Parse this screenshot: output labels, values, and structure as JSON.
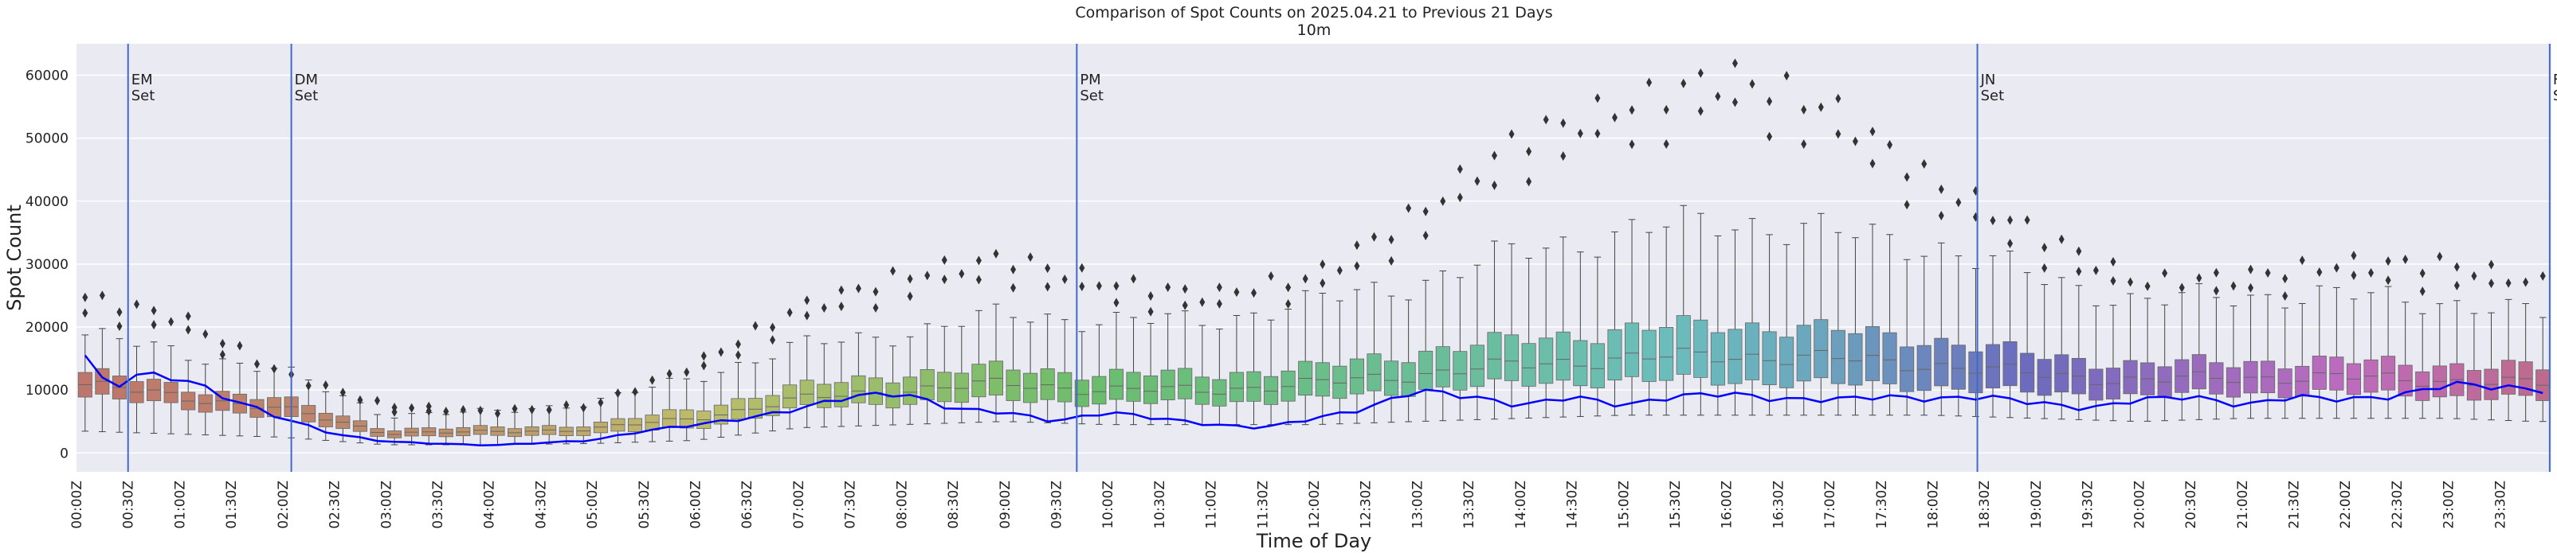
{
  "chart_data": {
    "type": "box",
    "title": "Comparison of Spot Counts on 2025.04.21 to Previous 21 Days",
    "subtitle": "10m",
    "xlabel": "Time of Day",
    "ylabel": "Spot Count",
    "ylim": [
      -3000,
      65000
    ],
    "yticks": [
      0,
      10000,
      20000,
      30000,
      40000,
      50000,
      60000
    ],
    "xtick_labels": [
      "00:00Z",
      "00:30Z",
      "01:00Z",
      "01:30Z",
      "02:00Z",
      "02:30Z",
      "03:00Z",
      "03:30Z",
      "04:00Z",
      "04:30Z",
      "05:00Z",
      "05:30Z",
      "06:00Z",
      "06:30Z",
      "07:00Z",
      "07:30Z",
      "08:00Z",
      "08:30Z",
      "09:00Z",
      "09:30Z",
      "10:00Z",
      "10:30Z",
      "11:00Z",
      "11:30Z",
      "12:00Z",
      "12:30Z",
      "13:00Z",
      "13:30Z",
      "14:00Z",
      "14:30Z",
      "15:00Z",
      "15:30Z",
      "16:00Z",
      "16:30Z",
      "17:00Z",
      "17:30Z",
      "18:00Z",
      "18:30Z",
      "19:00Z",
      "19:30Z",
      "20:00Z",
      "20:30Z",
      "21:00Z",
      "21:30Z",
      "22:00Z",
      "22:30Z",
      "23:00Z",
      "23:30Z"
    ],
    "n_bins": 144,
    "bin_minutes": 10,
    "box_anchors": {
      "minutes": [
        0,
        60,
        120,
        180,
        240,
        300,
        360,
        420,
        480,
        540,
        600,
        660,
        720,
        780,
        840,
        900,
        960,
        1020,
        1080,
        1140,
        1200,
        1260,
        1320,
        1380,
        1430
      ],
      "q1": [
        9000,
        7500,
        5500,
        2600,
        2700,
        3000,
        4000,
        7000,
        8000,
        8500,
        8000,
        8000,
        8500,
        10000,
        11000,
        11500,
        11500,
        11000,
        10500,
        9500,
        9000,
        9500,
        9500,
        9000,
        8500
      ],
      "median": [
        11000,
        9000,
        7000,
        3200,
        3300,
        3800,
        5500,
        8500,
        10000,
        11000,
        10000,
        10000,
        11000,
        12500,
        14000,
        15000,
        15500,
        15000,
        14000,
        12500,
        11500,
        12000,
        12000,
        11500,
        11000
      ],
      "q3": [
        13000,
        10500,
        8500,
        3800,
        4000,
        4500,
        7000,
        10500,
        12500,
        13500,
        12500,
        12500,
        13500,
        16000,
        18000,
        19500,
        20500,
        19500,
        18000,
        15500,
        14000,
        14500,
        14500,
        14000,
        13500
      ],
      "wlow": [
        3500,
        3000,
        2500,
        1300,
        1300,
        1500,
        2000,
        4000,
        4500,
        5000,
        4500,
        4500,
        4500,
        5000,
        5500,
        6000,
        6000,
        6000,
        6000,
        5500,
        5000,
        5500,
        5500,
        5500,
        5000
      ],
      "whigh": [
        19000,
        16000,
        13000,
        6000,
        6500,
        8000,
        12000,
        17000,
        19000,
        22000,
        21000,
        21000,
        24000,
        27000,
        32000,
        35000,
        37000,
        35000,
        33000,
        28000,
        24000,
        25000,
        25000,
        24000,
        22000
      ],
      "flier": [
        25000,
        21500,
        12500,
        7500,
        6500,
        7500,
        14000,
        23000,
        28000,
        31000,
        27000,
        25000,
        28000,
        38000,
        50000,
        55000,
        60000,
        55000,
        43000,
        35000,
        27000,
        28000,
        30000,
        30000,
        27000
      ]
    },
    "current_day_anchors": {
      "minutes": [
        0,
        20,
        30,
        60,
        90,
        120,
        150,
        180,
        210,
        240,
        270,
        300,
        330,
        360,
        390,
        420,
        450,
        480,
        510,
        540,
        570,
        600,
        630,
        660,
        690,
        720,
        750,
        780,
        810,
        840,
        870,
        900,
        930,
        960,
        990,
        1020,
        1050,
        1080,
        1110,
        1140,
        1170,
        1200,
        1230,
        1260,
        1290,
        1320,
        1350,
        1380,
        1410,
        1430
      ],
      "values": [
        17500,
        9500,
        12500,
        12000,
        8500,
        5500,
        3000,
        1800,
        1500,
        1200,
        1600,
        2000,
        3500,
        4500,
        5500,
        7000,
        9000,
        9500,
        7000,
        6500,
        5000,
        6500,
        5500,
        4500,
        4000,
        5500,
        7000,
        10000,
        9000,
        7500,
        9000,
        7500,
        9000,
        9500,
        8500,
        8500,
        9000,
        8500,
        9000,
        8000,
        7000,
        8500,
        9000,
        7500,
        9000,
        8500,
        9000,
        11000,
        10500,
        10000
      ]
    },
    "vlines": [
      {
        "label": "EM",
        "sublabel": "Set",
        "minute": 30
      },
      {
        "label": "DM",
        "sublabel": "Set",
        "minute": 125
      },
      {
        "label": "PM",
        "sublabel": "Set",
        "minute": 582
      },
      {
        "label": "JN",
        "sublabel": "Set",
        "minute": 1106
      },
      {
        "label": "FN",
        "sublabel": "Set",
        "minute": 1439
      }
    ],
    "colors": {
      "background": "#eaeaf2",
      "grid": "#ffffff",
      "current_line": "#0000ff",
      "vline": "#4169c8",
      "whisker": "#444444",
      "flier": "#333333",
      "box_edge": "#666666"
    }
  }
}
